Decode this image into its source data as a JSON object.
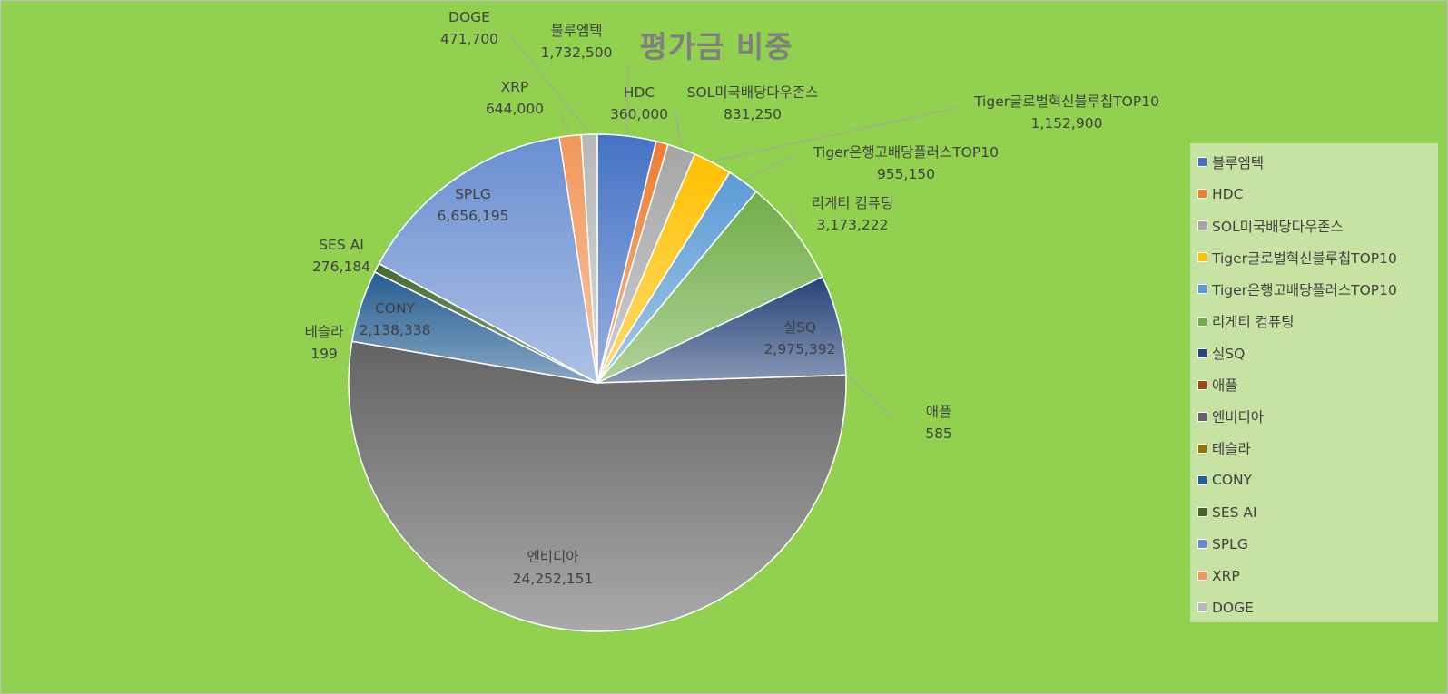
{
  "chart_data": {
    "type": "pie",
    "title": "평가금 비중",
    "legend_position": "right",
    "slices": [
      {
        "label": "블루엠텍",
        "value": 1732500,
        "value_text": "1,732,500",
        "color": "#4472c4"
      },
      {
        "label": "HDC",
        "value": 360000,
        "value_text": "360,000",
        "color": "#ed7d31"
      },
      {
        "label": "SOL미국배당다우존스",
        "value": 831250,
        "value_text": "831,250",
        "color": "#a5a5a5"
      },
      {
        "label": "Tiger글로벌혁신블루칩TOP10",
        "value": 1152900,
        "value_text": "1,152,900",
        "color": "#ffc000"
      },
      {
        "label": "Tiger은행고배당플러스TOP10",
        "value": 955150,
        "value_text": "955,150",
        "color": "#5b9bd5"
      },
      {
        "label": "리게티 컴퓨팅",
        "value": 3173222,
        "value_text": "3,173,222",
        "color": "#70ad47"
      },
      {
        "label": "실SQ",
        "value": 2975392,
        "value_text": "2,975,392",
        "color": "#264478"
      },
      {
        "label": "애플",
        "value": 585,
        "value_text": "585",
        "color": "#9e480e"
      },
      {
        "label": "엔비디아",
        "value": 24252151,
        "value_text": "24,252,151",
        "color": "#636363"
      },
      {
        "label": "테슬라",
        "value": 199,
        "value_text": "199",
        "color": "#997300"
      },
      {
        "label": "CONY",
        "value": 2138338,
        "value_text": "2,138,338",
        "color": "#255e91"
      },
      {
        "label": "SES AI",
        "value": 276184,
        "value_text": "276,184",
        "color": "#43682b"
      },
      {
        "label": "SPLG",
        "value": 6656195,
        "value_text": "6,656,195",
        "color": "#698ed0"
      },
      {
        "label": "XRP",
        "value": 644000,
        "value_text": "644,000",
        "color": "#f1975a"
      },
      {
        "label": "DOGE",
        "value": 471700,
        "value_text": "471,700",
        "color": "#b7b7b7"
      }
    ]
  }
}
